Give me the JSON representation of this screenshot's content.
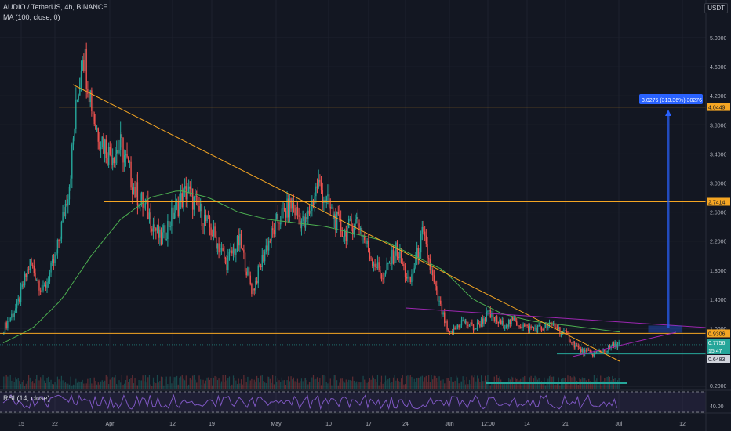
{
  "header": {
    "symbol_line": "AUDIO / TetherUS, 4h, BINANCE",
    "ma_line": "MA (100, close, 0)",
    "rsi_line": "RSI (14, close)",
    "currency": "USDT"
  },
  "colors": {
    "background": "#131722",
    "grid": "#1e222d",
    "up": "#26a69a",
    "down": "#ef5350",
    "ma": "#4caf50",
    "trendline": "#f5a623",
    "hline": "#f5a623",
    "channel": "#9c27b0",
    "measure": "#2962ff",
    "rsi": "#7e57c2",
    "price_teal": "#26a69a"
  },
  "price_axis": {
    "ticks": [
      "5.0000",
      "4.6000",
      "4.2000",
      "3.8000",
      "3.4000",
      "3.0000",
      "2.6000",
      "2.2000",
      "1.8000",
      "1.4000",
      "1.0000",
      "0.2000"
    ],
    "labels": [
      {
        "text": "4.0449",
        "kind": "orange"
      },
      {
        "text": "2.7414",
        "kind": "orange"
      },
      {
        "text": "0.9306",
        "kind": "orange"
      },
      {
        "text": "0.7756",
        "kind": "teal"
      },
      {
        "text": "15:47",
        "kind": "teal"
      },
      {
        "text": "0.6483",
        "kind": "white"
      }
    ]
  },
  "rsi_axis": {
    "ticks": [
      "40.00"
    ]
  },
  "time_axis": {
    "ticks": [
      "15",
      "22",
      "Apr",
      "12",
      "19",
      "May",
      "10",
      "17",
      "24",
      "Jun",
      "12:00",
      "14",
      "21",
      "Jul",
      "12"
    ]
  },
  "measure_label": "3.0276 (313.36%) 30276",
  "chart_data": {
    "type": "candlestick",
    "title": "AUDIO / TetherUS, 4h, BINANCE",
    "y_range": [
      0.2,
      5.3
    ],
    "x_ticks": [
      "15",
      "22",
      "Apr",
      "12",
      "19",
      "May",
      "10",
      "17",
      "24",
      "Jun",
      "12:00",
      "14",
      "21",
      "Jul",
      "12"
    ],
    "horizontal_levels": [
      4.0449,
      2.7414,
      0.9306
    ],
    "last_price": 0.7756,
    "marked_price": 0.6483,
    "price_path_key_points": [
      1.0,
      1.3,
      1.9,
      1.5,
      2.0,
      3.0,
      4.9,
      3.8,
      3.4,
      3.5,
      2.9,
      2.6,
      2.2,
      2.6,
      2.9,
      2.6,
      2.3,
      1.9,
      2.2,
      1.5,
      2.1,
      2.5,
      2.7,
      2.4,
      3.0,
      2.6,
      2.3,
      2.5,
      2.0,
      1.7,
      2.1,
      1.6,
      2.3,
      1.5,
      0.9,
      1.1,
      1.0,
      1.2,
      1.05,
      1.1,
      1.0,
      1.0,
      1.05,
      0.9,
      0.7,
      0.65,
      0.7,
      0.8
    ],
    "ma_key_points": [
      0.8,
      1.0,
      1.4,
      2.0,
      2.5,
      2.8,
      2.9,
      2.8,
      2.6,
      2.5,
      2.45,
      2.4,
      2.3,
      2.2,
      2.0,
      1.8,
      1.4,
      1.2,
      1.1,
      1.05,
      1.0,
      0.95
    ],
    "rsi_value_range": [
      30,
      70
    ]
  }
}
